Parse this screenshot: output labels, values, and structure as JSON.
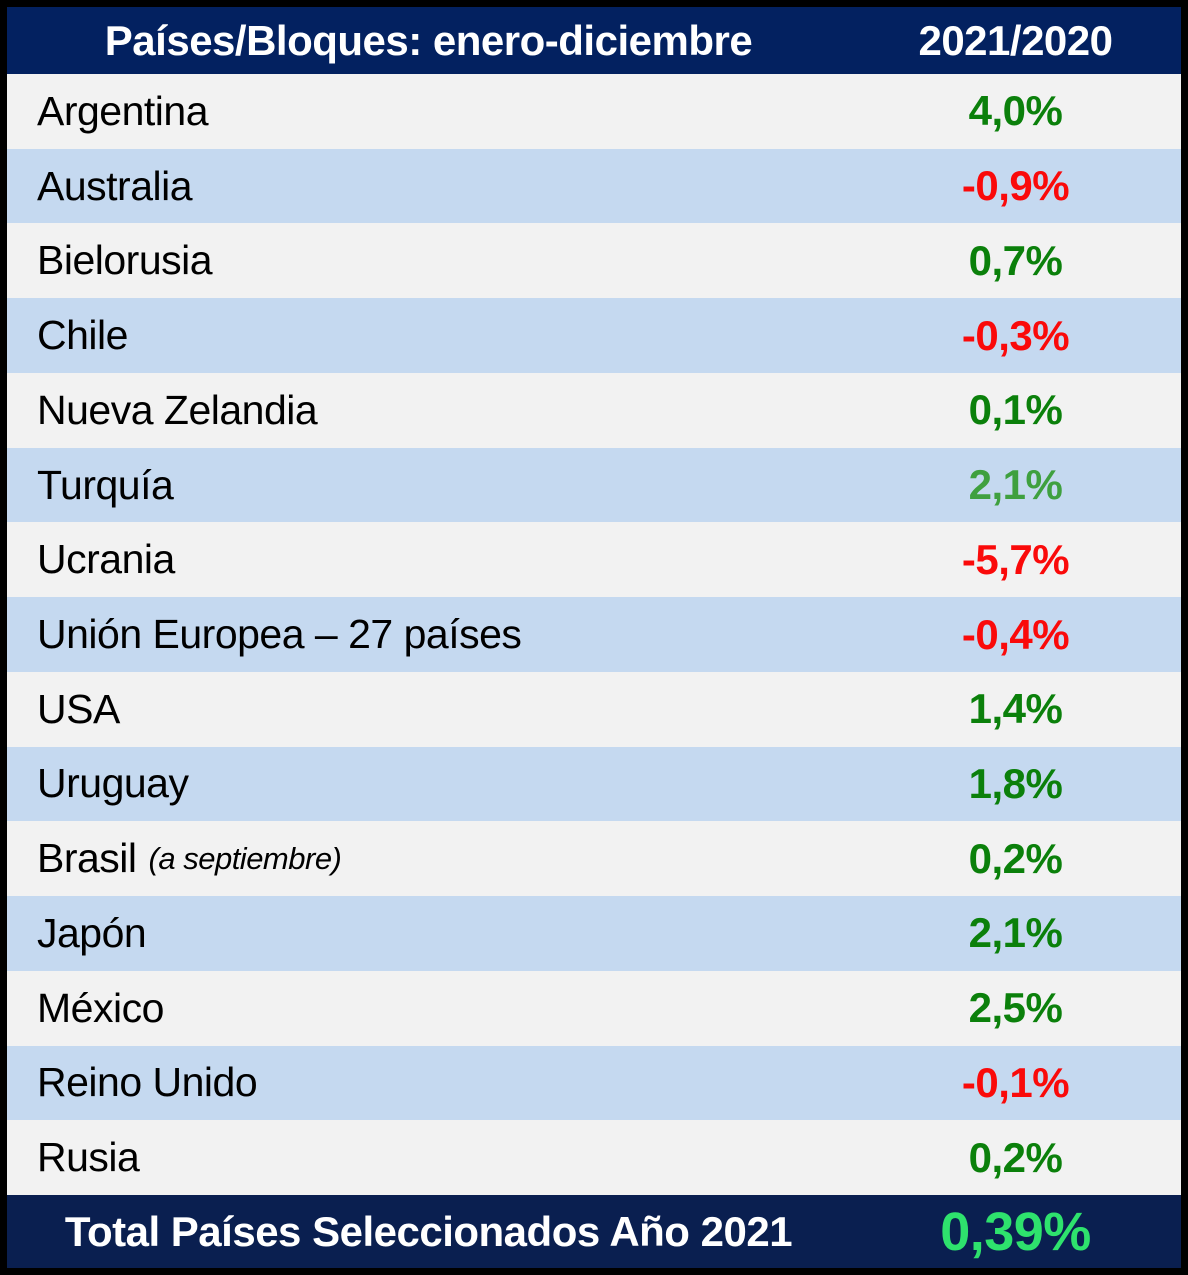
{
  "table": {
    "header": {
      "title": "Países/Bloques: enero-diciembre",
      "period": "2021/2020"
    },
    "rows": [
      {
        "country": "Argentina",
        "value": "4,0%",
        "trend": "positive"
      },
      {
        "country": "Australia",
        "value": "-0,9%",
        "trend": "negative"
      },
      {
        "country": "Bielorusia",
        "value": "0,7%",
        "trend": "positive"
      },
      {
        "country": "Chile",
        "value": "-0,3%",
        "trend": "negative"
      },
      {
        "country": "Nueva Zelandia",
        "value": "0,1%",
        "trend": "positive"
      },
      {
        "country": "Turquía",
        "value": "2,1%",
        "trend": "positive-light"
      },
      {
        "country": "Ucrania",
        "value": "-5,7%",
        "trend": "negative"
      },
      {
        "country": "Unión Europea – 27 países",
        "value": "-0,4%",
        "trend": "negative"
      },
      {
        "country": "USA",
        "value": "1,4%",
        "trend": "positive"
      },
      {
        "country": "Uruguay",
        "value": "1,8%",
        "trend": "positive"
      },
      {
        "country": "Brasil",
        "note": "(a septiembre)",
        "value": "0,2%",
        "trend": "positive"
      },
      {
        "country": "Japón",
        "value": "2,1%",
        "trend": "positive"
      },
      {
        "country": "México",
        "value": "2,5%",
        "trend": "positive"
      },
      {
        "country": "Reino Unido",
        "value": "-0,1%",
        "trend": "negative"
      },
      {
        "country": "Rusia",
        "value": "0,2%",
        "trend": "positive"
      }
    ],
    "footer": {
      "label": "Total Países Seleccionados Año 2021",
      "value": "0,39%"
    },
    "colors": {
      "header_navy": "#032160",
      "footer_navy": "#0A1F50",
      "row_gray": "#F2F2F2",
      "row_blue": "#C5D9F0",
      "value_green_dark": "#0B800B",
      "value_green_light": "#3FA03F",
      "value_red": "#FA0A0A",
      "footer_value_green": "#2EE26D",
      "border_black": "#000000",
      "header_text_white": "#FFFFFF"
    }
  },
  "chart_data": {
    "type": "table",
    "title": "Países/Bloques: enero-diciembre",
    "columns": [
      "Países/Bloques: enero-diciembre",
      "2021/2020"
    ],
    "units": "percent change 2021 vs 2020",
    "rows": [
      [
        "Argentina",
        4.0
      ],
      [
        "Australia",
        -0.9
      ],
      [
        "Bielorusia",
        0.7
      ],
      [
        "Chile",
        -0.3
      ],
      [
        "Nueva Zelandia",
        0.1
      ],
      [
        "Turquía",
        2.1
      ],
      [
        "Ucrania",
        -5.7
      ],
      [
        "Unión Europea – 27 países",
        -0.4
      ],
      [
        "USA",
        1.4
      ],
      [
        "Uruguay",
        1.8
      ],
      [
        "Brasil (a septiembre)",
        0.2
      ],
      [
        "Japón",
        2.1
      ],
      [
        "México",
        2.5
      ],
      [
        "Reino Unido",
        -0.1
      ],
      [
        "Rusia",
        0.2
      ]
    ],
    "total_row": {
      "label": "Total Países Seleccionados Año 2021",
      "value": 0.39
    },
    "layout": {
      "zebra_striping": true,
      "value_column_align": "center"
    }
  }
}
